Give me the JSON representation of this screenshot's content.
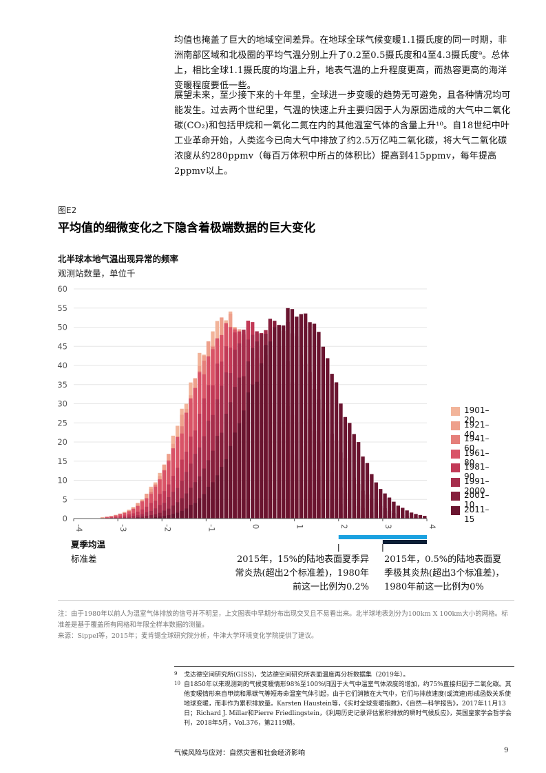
{
  "paragraphs": {
    "p1": "均值也掩盖了巨大的地域空间差异。在地球全球气候变暖1.1摄氏度的同一时期，非洲南部区域和北极圈的平均气温分别上升了0.2至0.5摄氏度和4至4.3摄氏度⁹。总体上，相比全球1.1摄氏度的均温上升，地表气温的上升程度更高，而热容更高的海洋变暖程度要低一些。",
    "p2": "展望未来，至少接下来的十年里，全球进一步变暖的趋势无可避免，且各种情况均可能发生。过去两个世纪里，气温的快速上升主要归因于人为原因造成的大气中二氧化碳(CO₂)和包括甲烷和一氧化二氮在内的其他温室气体的含量上升¹⁰。自18世纪中叶工业革命开始，人类迄今已向大气中排放了约2.5万亿吨二氧化碳，将大气二氧化碳浓度从约280ppmv（每百万体积中所占的体积比）提高到415ppmv，每年提高2ppmv以上。"
  },
  "figure": {
    "label": "图E2",
    "title": "平均值的细微变化之下隐含着极端数据的巨大变化"
  },
  "chart_data": {
    "type": "bar",
    "title": "北半球本地气温出现异常的频率",
    "ylabel": "观测站数量，单位千",
    "xlabel": "夏季均温",
    "xlabel_sub": "标准差",
    "ylim": [
      0,
      60
    ],
    "xlim": [
      -4,
      4
    ],
    "yticks": [
      "0",
      "5",
      "10",
      "15",
      "20",
      "25",
      "30",
      "35",
      "40",
      "45",
      "50",
      "55",
      "60"
    ],
    "xticks": [
      "-4",
      "-3",
      "-2",
      "-1",
      "0",
      "1",
      "2",
      "3",
      "4"
    ],
    "bin_width": 0.1,
    "series": [
      {
        "name": "1901–20",
        "color": "#f2b49a",
        "x_center": -0.55,
        "width": 0.88,
        "peak": 53
      },
      {
        "name": "1921–40",
        "color": "#eea08c",
        "x_center": -0.5,
        "width": 0.9,
        "peak": 52
      },
      {
        "name": "1941–60",
        "color": "#e57f7a",
        "x_center": -0.45,
        "width": 0.9,
        "peak": 51
      },
      {
        "name": "1961–80",
        "color": "#d95468",
        "x_center": -0.4,
        "width": 0.92,
        "peak": 52
      },
      {
        "name": "1981–90",
        "color": "#c23a57",
        "x_center": -0.1,
        "width": 0.95,
        "peak": 51
      },
      {
        "name": "1991–2000",
        "color": "#a62e4d",
        "x_center": 0.2,
        "width": 0.97,
        "peak": 51
      },
      {
        "name": "2001–10",
        "color": "#86203d",
        "x_center": 0.6,
        "width": 1.0,
        "peak": 52
      },
      {
        "name": "2011–15",
        "color": "#6a1530",
        "x_center": 1.0,
        "width": 1.0,
        "peak": 55
      }
    ],
    "threshold_bars": [
      {
        "from": 2,
        "to": 4,
        "color": "#1aa1e0"
      },
      {
        "from": 3,
        "to": 4,
        "color": "#0b1f36"
      }
    ],
    "legend_position": "right"
  },
  "callouts": {
    "two_sd": "2015年，15%的陆地表面夏季异常炎热(超出2个标准差)，1980年前这一比例为0.2%",
    "three_sd": "2015年，0.5%的陆地表面夏季极其炎热(超出3个标准差)，1980年前这一比例为0%"
  },
  "notes": {
    "note": "注：由于1980年以前人为温室气体排放的信号并不明显，上文图表中早期分布出现交叉且不易看出来。北半球地表划分为100km X 100km大小的网格。标准差是基于覆盖所有网格和年限全样本数据的测量。",
    "source": "来源：Sippel等，2015年；麦肯锡全球研究院分析，牛津大学环境变化学院提供了建议。"
  },
  "footnotes": [
    {
      "num": "9",
      "text": "戈达德空间研究所(GISS)，戈达德空间研究所表面温度再分析数据集（2019年）。"
    },
    {
      "num": "10",
      "text": "自1850年以来观测到的气候变暖情形98%至100%归因于大气中温室气体浓度的增加，约75%直接归因于二氧化碳。其他变暖情形来自甲烷和黑碳气等短寿命温室气体引起，由于它们消散在大气中，它们与排放速度(或流速)形成函数关系使地球变暖，而非作为累积排放量。Karsten Haustein等，《实时全球变暖指数》，《自然—科学报告》，2017年11月13日；Richard J. Millar和Pierre Friedlingstein，《利用历史记录评估累积排放的瞬时气候反应》，英国皇家学会哲学会刊，2018年5月，Vol.376，第2119期。"
    }
  ],
  "footer": {
    "title": "气候风险与应对：自然灾害和社会经济影响",
    "page": "9"
  }
}
